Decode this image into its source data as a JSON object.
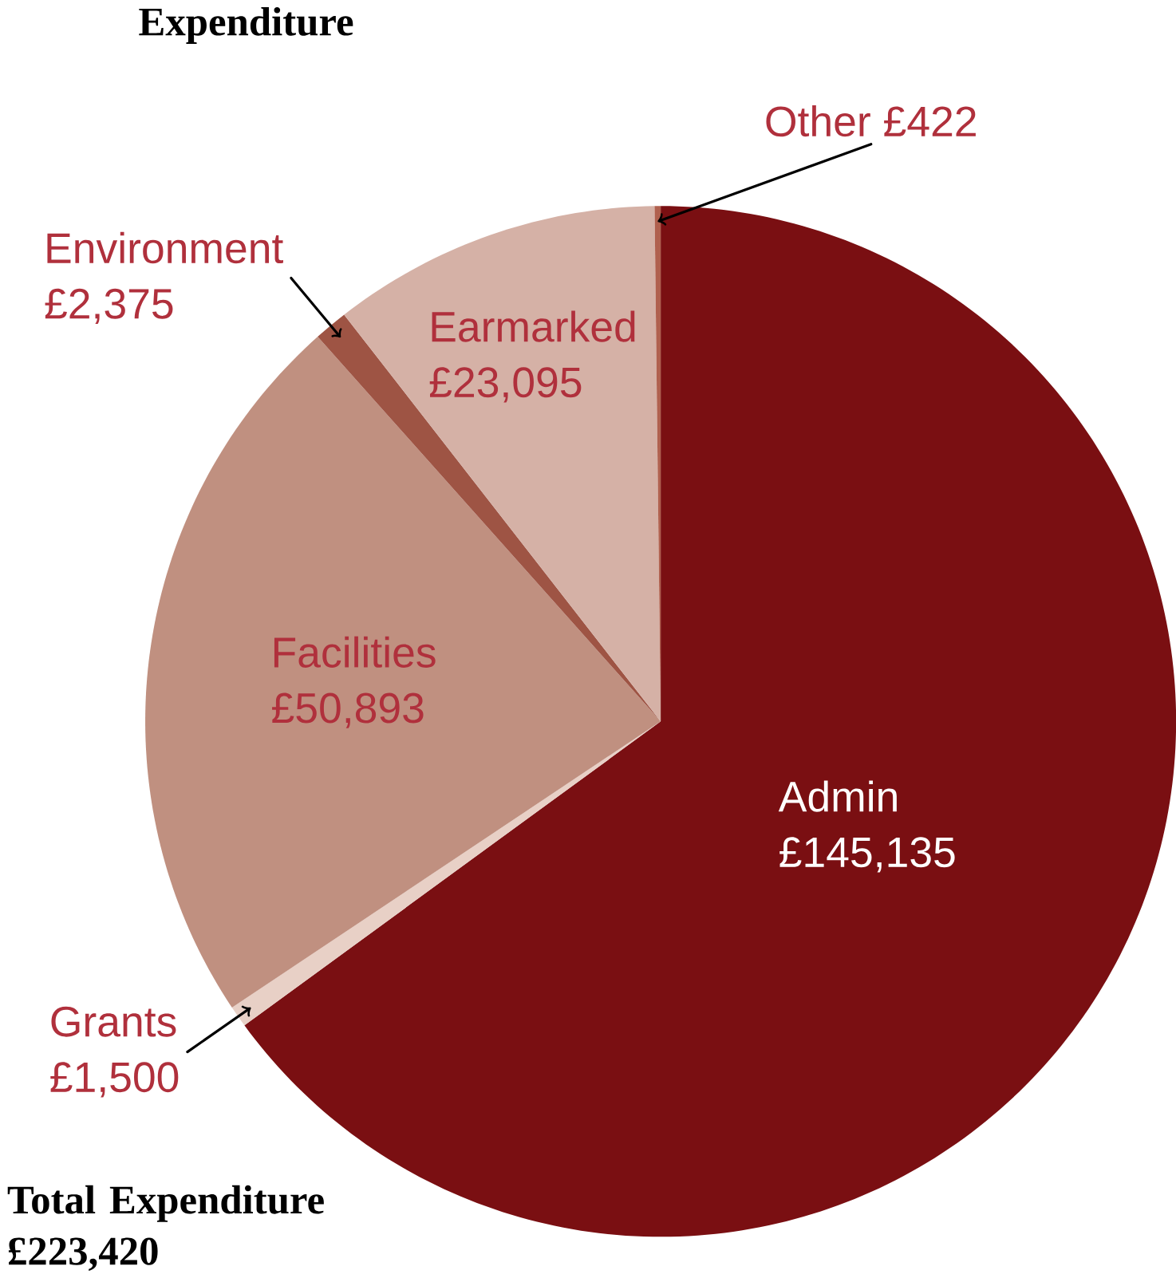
{
  "chart_data": {
    "type": "pie",
    "title": "Expenditure",
    "categories": [
      "Admin",
      "Grants",
      "Facilities",
      "Environment",
      "Earmarked",
      "Other"
    ],
    "values": [
      145135,
      1500,
      50893,
      2375,
      23095,
      422
    ],
    "value_labels": [
      "£145,135",
      "£1,500",
      "£50,893",
      "£2,375",
      "£23,095",
      "£422"
    ],
    "colors": [
      "#7a0f12",
      "#e8d0c6",
      "#c09080",
      "#9e5444",
      "#d5b1a6",
      "#b0604e"
    ],
    "annotations": [
      "Total Expenditure £223,420"
    ]
  }
}
